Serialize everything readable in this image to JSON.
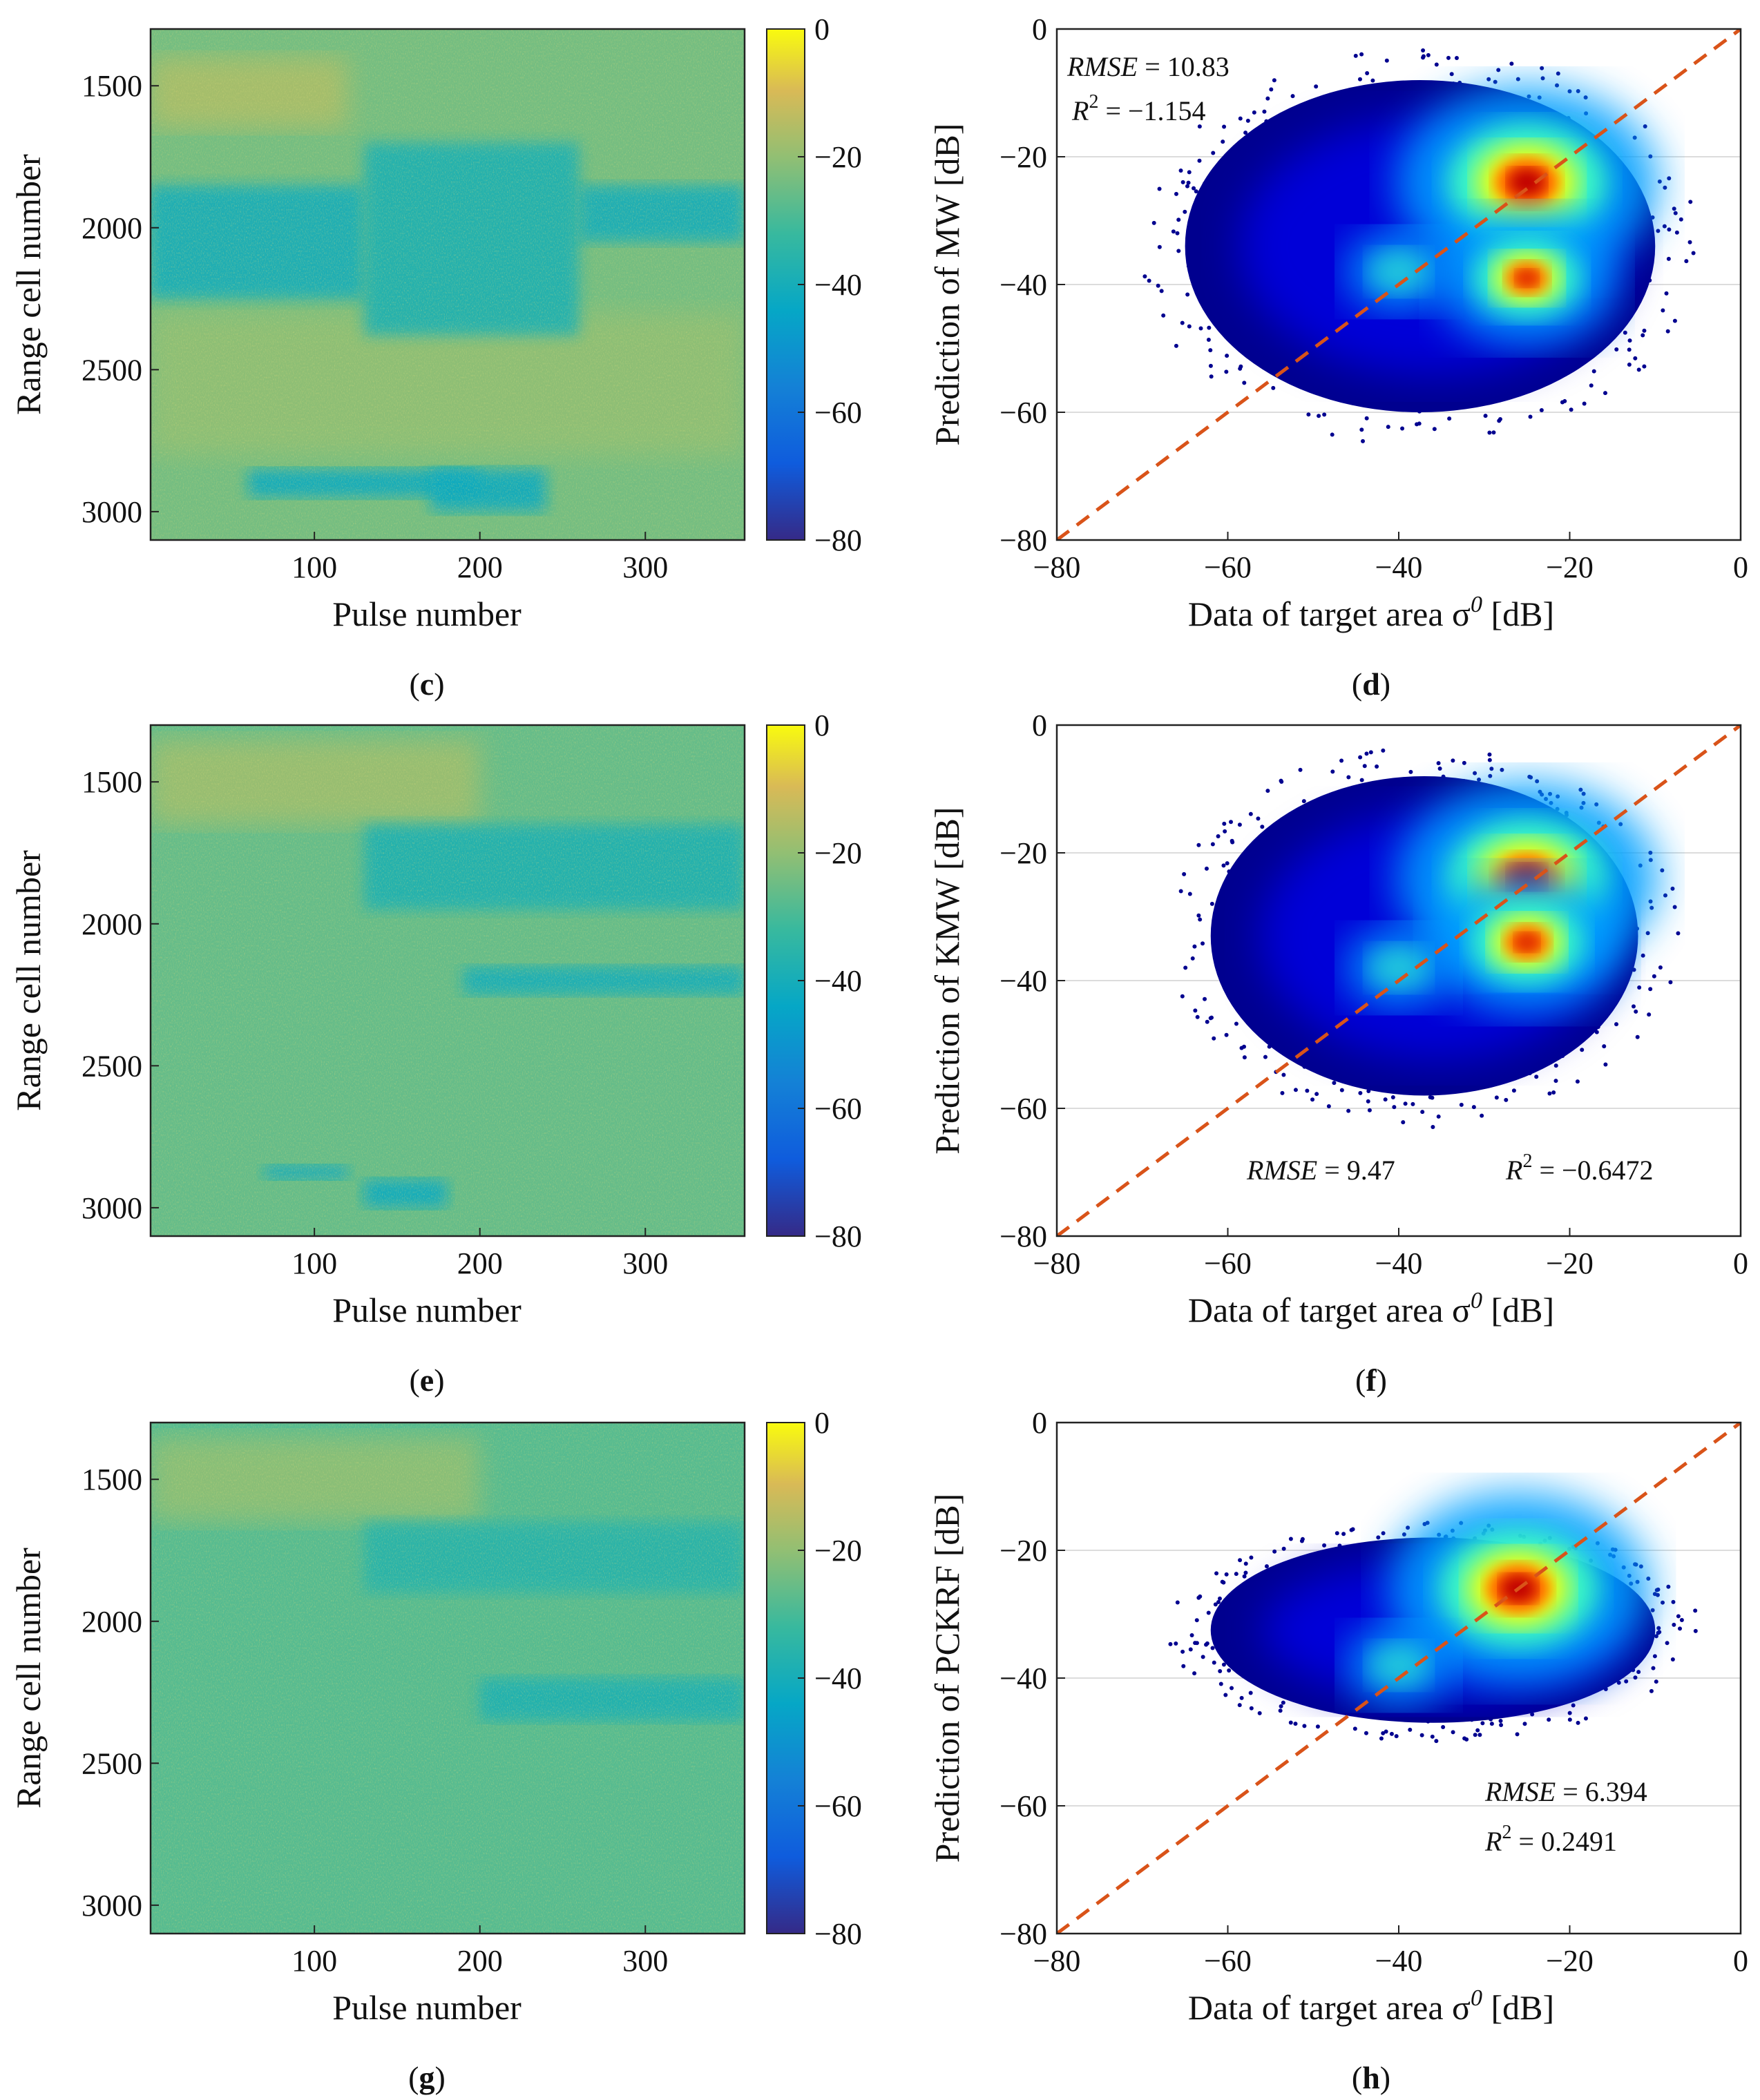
{
  "colormap_panels": [
    {
      "id": "c",
      "label": "c",
      "xlabel": "Pulse number",
      "ylabel": "Range cell number",
      "x_ticks": [
        "100",
        "200",
        "300"
      ],
      "y_ticks": [
        "1500",
        "2000",
        "2500",
        "3000"
      ],
      "colorbar_ticks": [
        "0",
        "−20",
        "−40",
        "−60",
        "−80"
      ]
    },
    {
      "id": "e",
      "label": "e",
      "xlabel": "Pulse number",
      "ylabel": "Range cell number",
      "x_ticks": [
        "100",
        "200",
        "300"
      ],
      "y_ticks": [
        "1500",
        "2000",
        "2500",
        "3000"
      ],
      "colorbar_ticks": [
        "0",
        "−20",
        "−40",
        "−60",
        "−80"
      ]
    },
    {
      "id": "g",
      "label": "g",
      "xlabel": "Pulse number",
      "ylabel": "Range cell number",
      "x_ticks": [
        "100",
        "200",
        "300"
      ],
      "y_ticks": [
        "1500",
        "2000",
        "2500",
        "3000"
      ],
      "colorbar_ticks": [
        "0",
        "−20",
        "−40",
        "−60",
        "−80"
      ]
    }
  ],
  "scatter_panels": [
    {
      "id": "d",
      "label": "d",
      "ylabel": "Prediction of MW [dB]",
      "xlabel_prefix": "Data of target area σ",
      "xlabel_sup": "0",
      "xlabel_suffix": " [dB]",
      "x_ticks": [
        "−80",
        "−60",
        "−40",
        "−20",
        "0"
      ],
      "y_ticks": [
        "0",
        "−20",
        "−40",
        "−60",
        "−80"
      ],
      "rmse_label": "RMSE",
      "rmse_value": "= 10.83",
      "r2_label": "R",
      "r2_sup": "2",
      "r2_value": "= −1.154"
    },
    {
      "id": "f",
      "label": "f",
      "ylabel": "Prediction of KMW [dB]",
      "xlabel_prefix": "Data of target area σ",
      "xlabel_sup": "0",
      "xlabel_suffix": " [dB]",
      "x_ticks": [
        "−80",
        "−60",
        "−40",
        "−20",
        "0"
      ],
      "y_ticks": [
        "0",
        "−20",
        "−40",
        "−60",
        "−80"
      ],
      "rmse_label": "RMSE",
      "rmse_value": "= 9.47",
      "r2_label": "R",
      "r2_sup": "2",
      "r2_value": "= −0.6472"
    },
    {
      "id": "h",
      "label": "h",
      "ylabel": "Prediction of PCKRF [dB]",
      "xlabel_prefix": "Data of target area σ",
      "xlabel_sup": "0",
      "xlabel_suffix": " [dB]",
      "x_ticks": [
        "−80",
        "−60",
        "−40",
        "−20",
        "0"
      ],
      "y_ticks": [
        "0",
        "−20",
        "−40",
        "−60",
        "−80"
      ],
      "rmse_label": "RMSE",
      "rmse_value": "= 6.394",
      "r2_label": "R",
      "r2_sup": "2",
      "r2_value": "= 0.2491"
    }
  ],
  "chart_data": [
    {
      "type": "heatmap",
      "panel": "c",
      "title": "",
      "xlabel": "Pulse number",
      "ylabel": "Range cell number",
      "xlim": [
        1,
        360
      ],
      "ylim": [
        3100,
        1300
      ],
      "y_reversed": true,
      "x_ticks": [
        100,
        200,
        300
      ],
      "y_ticks": [
        1500,
        2000,
        2500,
        3000
      ],
      "colorbar": {
        "min": -80,
        "max": 0,
        "ticks": [
          0,
          -20,
          -40,
          -60,
          -80
        ],
        "colormap": "parula"
      },
      "background_db": -24,
      "low_regions": [
        {
          "x": [
            0,
            130
          ],
          "y": [
            1850,
            2250
          ],
          "value_db": -40
        },
        {
          "x": [
            130,
            260
          ],
          "y": [
            1700,
            2380
          ],
          "value_db": -38
        },
        {
          "x": [
            260,
            360
          ],
          "y": [
            1850,
            2050
          ],
          "value_db": -40
        },
        {
          "x": [
            60,
            200
          ],
          "y": [
            2850,
            2950
          ],
          "value_db": -42
        },
        {
          "x": [
            170,
            240
          ],
          "y": [
            2850,
            3000
          ],
          "value_db": -42
        }
      ],
      "high_regions": [
        {
          "x": [
            0,
            120
          ],
          "y": [
            1400,
            1650
          ],
          "value_db": -16
        },
        {
          "x": [
            0,
            360
          ],
          "y": [
            2300,
            2800
          ],
          "value_db": -20
        }
      ]
    },
    {
      "type": "scatter",
      "panel": "d",
      "xlabel": "Data of target area σ0 [dB]",
      "ylabel": "Prediction of MW [dB]",
      "xlim": [
        -80,
        0
      ],
      "ylim": [
        -80,
        0
      ],
      "x_ticks": [
        -80,
        -60,
        -40,
        -20,
        0
      ],
      "y_ticks": [
        0,
        -20,
        -40,
        -60,
        -80
      ],
      "identity_line": true,
      "density_extent": {
        "x": [
          -65,
          -10
        ],
        "y": [
          -60,
          -8
        ]
      },
      "density_peaks": [
        {
          "x": -25,
          "y": -24,
          "weight": 1.0
        },
        {
          "x": -25,
          "y": -39,
          "weight": 0.6
        },
        {
          "x": -40,
          "y": -38,
          "weight": 0.25
        }
      ],
      "RMSE": 10.83,
      "R2": -1.154
    },
    {
      "type": "heatmap",
      "panel": "e",
      "title": "",
      "xlabel": "Pulse number",
      "ylabel": "Range cell number",
      "xlim": [
        1,
        360
      ],
      "ylim": [
        3100,
        1300
      ],
      "y_reversed": true,
      "x_ticks": [
        100,
        200,
        300
      ],
      "y_ticks": [
        1500,
        2000,
        2500,
        3000
      ],
      "colorbar": {
        "min": -80,
        "max": 0,
        "ticks": [
          0,
          -20,
          -40,
          -60,
          -80
        ],
        "colormap": "parula"
      },
      "background_db": -26,
      "low_regions": [
        {
          "x": [
            130,
            360
          ],
          "y": [
            1650,
            1950
          ],
          "value_db": -38
        },
        {
          "x": [
            190,
            360
          ],
          "y": [
            2150,
            2250
          ],
          "value_db": -40
        },
        {
          "x": [
            70,
            120
          ],
          "y": [
            2850,
            2900
          ],
          "value_db": -42
        },
        {
          "x": [
            130,
            180
          ],
          "y": [
            2900,
            3000
          ],
          "value_db": -42
        }
      ],
      "high_regions": [
        {
          "x": [
            0,
            200
          ],
          "y": [
            1350,
            1650
          ],
          "value_db": -18
        }
      ]
    },
    {
      "type": "scatter",
      "panel": "f",
      "xlabel": "Data of target area σ0 [dB]",
      "ylabel": "Prediction of KMW [dB]",
      "xlim": [
        -80,
        0
      ],
      "ylim": [
        -80,
        0
      ],
      "x_ticks": [
        -80,
        -60,
        -40,
        -20,
        0
      ],
      "y_ticks": [
        0,
        -20,
        -40,
        -60,
        -80
      ],
      "identity_line": true,
      "density_extent": {
        "x": [
          -62,
          -12
        ],
        "y": [
          -58,
          -8
        ]
      },
      "density_peaks": [
        {
          "x": -25,
          "y": -24,
          "weight": 1.0
        },
        {
          "x": -25,
          "y": -34,
          "weight": 0.65
        },
        {
          "x": -40,
          "y": -38,
          "weight": 0.25
        }
      ],
      "RMSE": 9.47,
      "R2": -0.6472
    },
    {
      "type": "heatmap",
      "panel": "g",
      "title": "",
      "xlabel": "Pulse number",
      "ylabel": "Range cell number",
      "xlim": [
        1,
        360
      ],
      "ylim": [
        3100,
        1300
      ],
      "y_reversed": true,
      "x_ticks": [
        100,
        200,
        300
      ],
      "y_ticks": [
        1500,
        2000,
        2500,
        3000
      ],
      "colorbar": {
        "min": -80,
        "max": 0,
        "ticks": [
          0,
          -20,
          -40,
          -60,
          -80
        ],
        "colormap": "parula"
      },
      "background_db": -28,
      "low_regions": [
        {
          "x": [
            130,
            360
          ],
          "y": [
            1650,
            1900
          ],
          "value_db": -36
        },
        {
          "x": [
            200,
            360
          ],
          "y": [
            2200,
            2350
          ],
          "value_db": -38
        }
      ],
      "high_regions": [
        {
          "x": [
            0,
            200
          ],
          "y": [
            1350,
            1650
          ],
          "value_db": -20
        }
      ]
    },
    {
      "type": "scatter",
      "panel": "h",
      "xlabel": "Data of target area σ0 [dB]",
      "ylabel": "Prediction of PCKRF [dB]",
      "xlim": [
        -80,
        0
      ],
      "ylim": [
        -80,
        0
      ],
      "x_ticks": [
        -80,
        -60,
        -40,
        -20,
        0
      ],
      "y_ticks": [
        0,
        -20,
        -40,
        -60,
        -80
      ],
      "identity_line": true,
      "density_extent": {
        "x": [
          -62,
          -10
        ],
        "y": [
          -47,
          -18
        ]
      },
      "density_peaks": [
        {
          "x": -26,
          "y": -26,
          "weight": 1.0
        },
        {
          "x": -40,
          "y": -38,
          "weight": 0.25
        }
      ],
      "RMSE": 6.394,
      "R2": 0.2491
    }
  ]
}
